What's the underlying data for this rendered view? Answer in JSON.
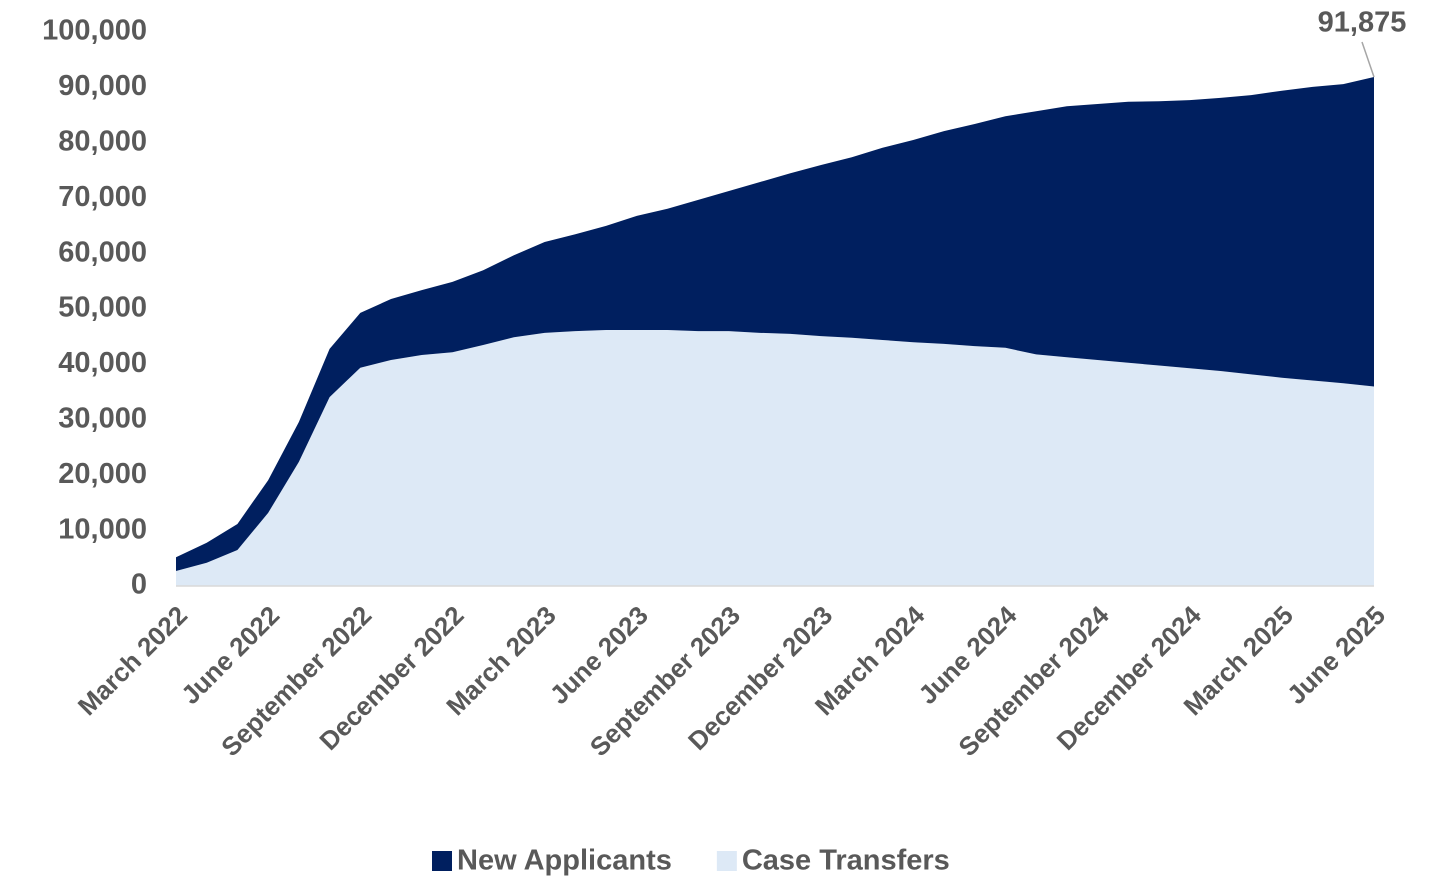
{
  "chart_data": {
    "type": "stacked-area",
    "categories": [
      "March 2022",
      null,
      null,
      "June 2022",
      null,
      null,
      "September 2022",
      null,
      null,
      "December 2022",
      null,
      null,
      "March 2023",
      null,
      null,
      "June 2023",
      null,
      null,
      "September 2023",
      null,
      null,
      "December 2023",
      null,
      null,
      "March 2024",
      null,
      null,
      "June 2024",
      null,
      null,
      "September 2024",
      null,
      null,
      "December 2024",
      null,
      null,
      "March 2025",
      null,
      null,
      "June 2025"
    ],
    "series": [
      {
        "name": "Case Transfers",
        "color": "#dde9f6",
        "values": [
          2700,
          4200,
          6500,
          13200,
          22400,
          34100,
          39400,
          40800,
          41700,
          42200,
          43500,
          44900,
          45700,
          46000,
          46200,
          46200,
          46200,
          46000,
          46000,
          45700,
          45500,
          45100,
          44800,
          44400,
          44000,
          43700,
          43300,
          43000,
          41800,
          41300,
          40800,
          40300,
          39800,
          39300,
          38800,
          38200,
          37600,
          37100,
          36600,
          36000
        ]
      },
      {
        "name": "New Applicants",
        "color": "#001f5f",
        "values": [
          2500,
          3600,
          4700,
          5900,
          7200,
          8700,
          9900,
          11000,
          11700,
          12700,
          13500,
          14800,
          16400,
          17500,
          18800,
          20600,
          21900,
          23700,
          25300,
          27200,
          29000,
          30900,
          32600,
          34700,
          36500,
          38400,
          40100,
          41800,
          43900,
          45300,
          46200,
          47100,
          47700,
          48400,
          49300,
          50400,
          51800,
          53000,
          54000,
          55875
        ]
      }
    ],
    "legend_order": [
      "New Applicants",
      "Case Transfers"
    ],
    "annotation": {
      "value": 91875,
      "label": "91,875"
    },
    "ylim": [
      0,
      100000
    ],
    "yticks": [
      0,
      {
        "value": 10000,
        "label": "10,000"
      },
      {
        "value": 20000,
        "label": "20,000"
      },
      {
        "value": 30000,
        "label": "30,000"
      },
      {
        "value": 40000,
        "label": "40,000"
      },
      {
        "value": 50000,
        "label": "50,000"
      },
      {
        "value": 60000,
        "label": "60,000"
      },
      {
        "value": 70000,
        "label": "70,000"
      },
      {
        "value": 80000,
        "label": "80,000"
      },
      {
        "value": 90000,
        "label": "90,000"
      },
      {
        "value": 100000,
        "label": "100,000"
      }
    ],
    "grid": false
  }
}
